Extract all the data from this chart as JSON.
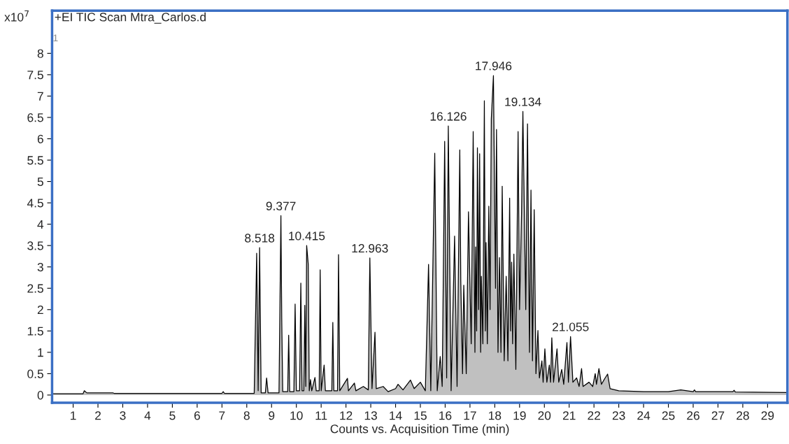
{
  "chart_data": {
    "type": "area",
    "title": "+EI TIC Scan Mtra_Carlos.d",
    "xlabel": "Counts vs. Acquisition Time (min)",
    "ylabel": "x10$^{7}$",
    "xlim": [
      0.15,
      29.8
    ],
    "ylim": [
      -0.18,
      9.0
    ],
    "xticks": [
      1,
      2,
      3,
      4,
      5,
      6,
      7,
      8,
      9,
      10,
      11,
      12,
      13,
      14,
      15,
      16,
      17,
      18,
      19,
      20,
      21,
      22,
      23,
      24,
      25,
      26,
      27,
      28,
      29
    ],
    "yticks": [
      0,
      0.5,
      1,
      1.5,
      2,
      2.5,
      3,
      3.5,
      4,
      4.5,
      5,
      5.5,
      6,
      6.5,
      7,
      7.5,
      8
    ],
    "grid": false,
    "legend": false,
    "annotations": [
      {
        "text": "8.518",
        "x": 8.518,
        "y": 3.45
      },
      {
        "text": "9.377",
        "x": 9.377,
        "y": 4.2
      },
      {
        "text": "10.415",
        "x": 10.415,
        "y": 3.5
      },
      {
        "text": "12.963",
        "x": 12.963,
        "y": 3.21
      },
      {
        "text": "16.126",
        "x": 16.126,
        "y": 6.3
      },
      {
        "text": "17.946",
        "x": 17.946,
        "y": 7.48
      },
      {
        "text": "19.134",
        "x": 19.134,
        "y": 6.64
      },
      {
        "text": "21.055",
        "x": 21.055,
        "y": 1.37
      },
      "1"
    ],
    "series": [
      {
        "color": "#c0c0c0",
        "x": [
          0.2,
          1.4,
          1.45,
          1.55,
          2.6,
          2.65,
          7.0,
          7.05,
          7.1,
          8.3,
          8.4,
          8.46,
          8.518,
          8.58,
          8.75,
          8.8,
          8.86,
          9.3,
          9.377,
          9.41,
          9.45,
          9.65,
          9.69,
          9.73,
          9.9,
          9.95,
          10.0,
          10.13,
          10.18,
          10.23,
          10.3,
          10.34,
          10.38,
          10.415,
          10.48,
          10.52,
          10.57,
          10.62,
          10.75,
          10.8,
          10.92,
          10.96,
          11.0,
          11.12,
          11.17,
          11.43,
          11.47,
          11.51,
          11.66,
          11.7,
          11.75,
          12.06,
          12.1,
          12.34,
          12.4,
          12.7,
          12.9,
          12.963,
          13.05,
          13.17,
          13.22,
          13.5,
          13.7,
          14.0,
          14.1,
          14.3,
          14.6,
          14.75,
          15.0,
          15.2,
          15.33,
          15.42,
          15.58,
          15.68,
          15.8,
          15.88,
          15.98,
          16.06,
          16.126,
          16.24,
          16.38,
          16.48,
          16.59,
          16.63,
          16.7,
          16.75,
          16.85,
          16.94,
          17.05,
          17.13,
          17.2,
          17.23,
          17.27,
          17.3,
          17.35,
          17.39,
          17.43,
          17.46,
          17.52,
          17.58,
          17.62,
          17.65,
          17.7,
          17.76,
          17.81,
          17.86,
          17.946,
          18.03,
          18.07,
          18.13,
          18.19,
          18.25,
          18.3,
          18.38,
          18.46,
          18.53,
          18.6,
          18.64,
          18.68,
          18.72,
          18.77,
          18.85,
          18.94,
          19.0,
          19.08,
          19.134,
          19.25,
          19.32,
          19.4,
          19.46,
          19.52,
          19.59,
          19.66,
          19.74,
          19.8,
          19.9,
          19.95,
          20.02,
          20.1,
          20.2,
          20.25,
          20.3,
          20.37,
          20.51,
          20.58,
          20.7,
          20.78,
          20.91,
          20.97,
          21.055,
          21.15,
          21.3,
          21.4,
          21.5,
          21.56,
          21.8,
          21.95,
          22.05,
          22.1,
          22.2,
          22.3,
          22.45,
          22.55,
          22.65,
          23.0,
          24.0,
          25.0,
          25.5,
          26.0,
          26.05,
          26.1,
          27.6,
          27.65,
          27.7,
          29.8
        ],
        "values": [
          0.03,
          0.03,
          0.1,
          0.05,
          0.05,
          0.04,
          0.04,
          0.08,
          0.04,
          0.04,
          3.32,
          0.1,
          3.45,
          0.05,
          0.05,
          0.4,
          0.05,
          0.05,
          4.2,
          1.8,
          0.08,
          0.08,
          1.4,
          0.08,
          0.08,
          2.13,
          0.1,
          0.1,
          2.62,
          0.1,
          0.1,
          2.1,
          0.2,
          3.5,
          3.06,
          0.1,
          0.36,
          0.1,
          0.41,
          0.1,
          0.1,
          2.93,
          0.1,
          0.7,
          0.1,
          0.1,
          1.7,
          0.1,
          0.1,
          3.29,
          0.1,
          0.39,
          0.1,
          0.28,
          0.1,
          0.2,
          0.12,
          3.21,
          0.15,
          1.47,
          0.15,
          0.2,
          0.08,
          0.15,
          0.25,
          0.12,
          0.35,
          0.15,
          0.3,
          0.1,
          3.06,
          0.1,
          5.66,
          0.1,
          0.9,
          0.2,
          5.94,
          0.4,
          6.3,
          0.1,
          3.72,
          0.2,
          5.74,
          2.67,
          0.5,
          2.57,
          0.5,
          4.29,
          1.2,
          6.17,
          1.0,
          3.47,
          1.5,
          5.79,
          2.0,
          5.65,
          1.0,
          2.78,
          1.2,
          6.89,
          1.5,
          3.57,
          1.2,
          4.42,
          2.0,
          6.46,
          7.48,
          2.5,
          6.22,
          1.0,
          3.22,
          1.0,
          4.89,
          0.8,
          2.78,
          0.8,
          4.61,
          1.5,
          3.11,
          1.2,
          3.3,
          0.6,
          6.17,
          2.0,
          4.26,
          6.64,
          2.0,
          6.35,
          1.0,
          4.8,
          0.8,
          4.34,
          0.5,
          1.51,
          0.4,
          0.8,
          0.3,
          1.08,
          0.3,
          0.7,
          0.3,
          1.34,
          0.3,
          1.08,
          0.3,
          0.6,
          0.25,
          1.23,
          0.3,
          1.37,
          0.3,
          0.4,
          0.2,
          0.62,
          0.2,
          0.3,
          0.2,
          0.5,
          0.25,
          0.62,
          0.25,
          0.4,
          0.49,
          0.15,
          0.1,
          0.08,
          0.08,
          0.12,
          0.08,
          0.12,
          0.08,
          0.08,
          0.11,
          0.07,
          0.06
        ]
      }
    ]
  }
}
